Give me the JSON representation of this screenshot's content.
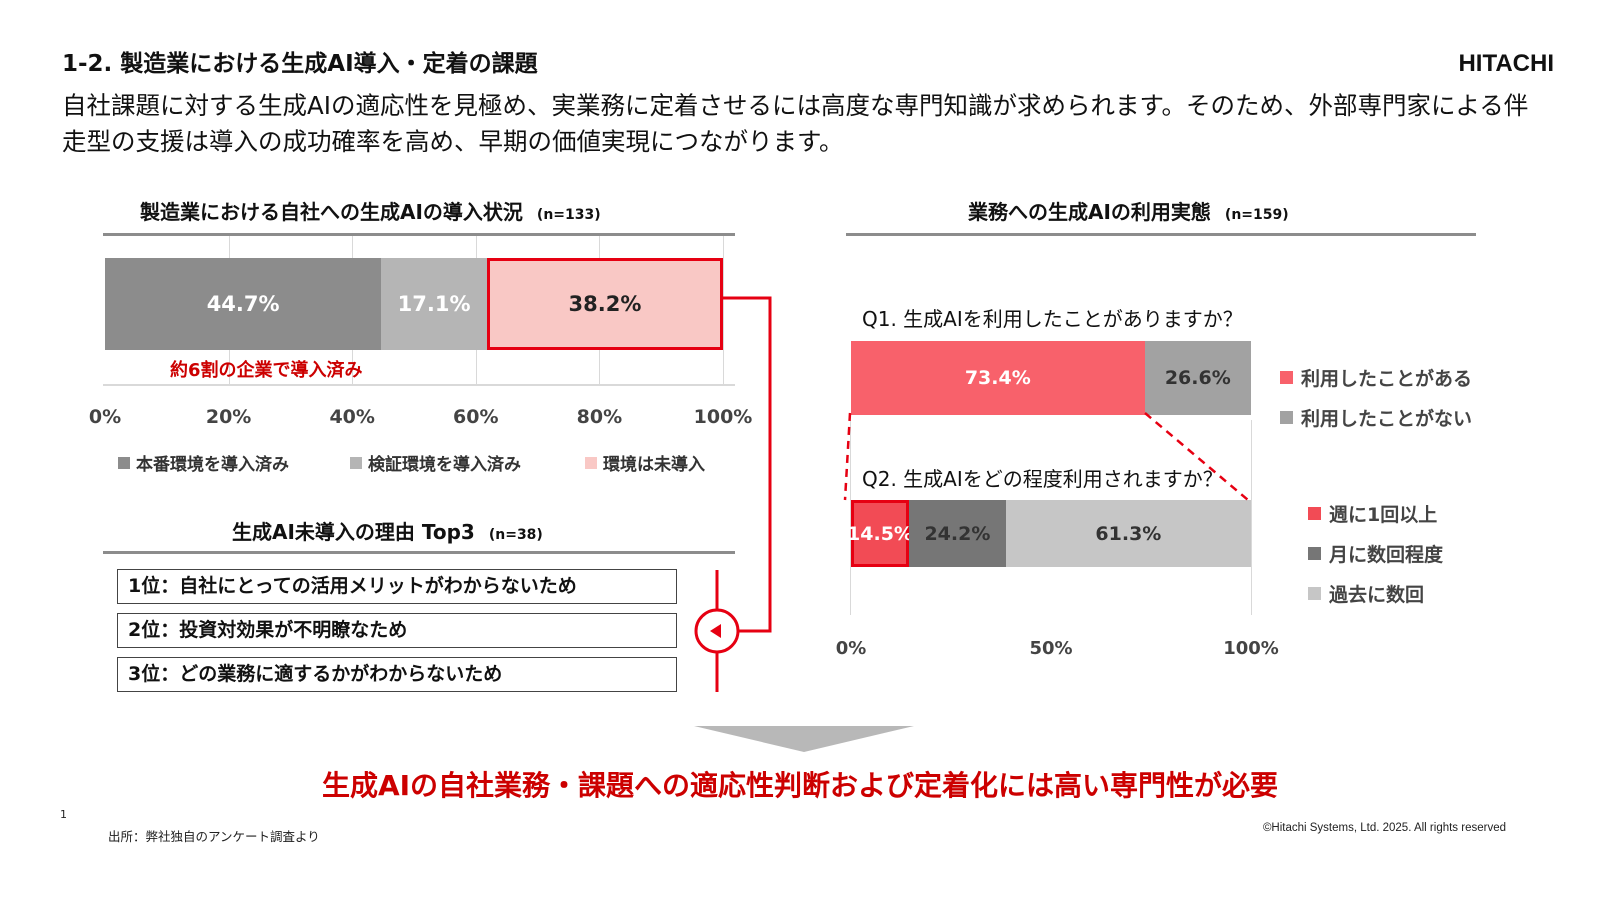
{
  "page": {
    "title": "1-2. 製造業における生成AI導入・定着の課題",
    "logo": "HITACHI",
    "lead": "自社課題に対する生成AIの適応性を見極め、実業務に定着させるには高度な専門知識が求められます。そのため、外部専門家による伴走型の支援は導入の成功確率を高め、早期の価値実現につながります。",
    "conclusion": "生成AIの自社業務・課題への適応性判断および定着化には高い専門性が必要",
    "page_number": "1",
    "source": "出所：弊社独自のアンケート調査より",
    "copyright": "©Hitachi Systems, Ltd. 2025. All rights reserved"
  },
  "left_chart": {
    "title": "製造業における自社への生成AIの導入状況",
    "n": "(n=133)",
    "callout": "約6割の企業で導入済み",
    "ticks": [
      "0%",
      "20%",
      "40%",
      "60%",
      "80%",
      "100%"
    ]
  },
  "reasons": {
    "title": "生成AI未導入の理由 Top3",
    "n": "(n=38)",
    "items": [
      "1位：自社にとっての活用メリットがわからないため",
      "2位：投資対効果が不明瞭なため",
      "3位：どの業務に適するかがわからないため"
    ]
  },
  "right_chart": {
    "title": "業務への生成AIの利用実態",
    "n": "(n=159)",
    "q1": "Q1. 生成AIを利用したことがありますか？",
    "q2": "Q2. 生成AIをどの程度利用されますか？",
    "ticks": [
      "0%",
      "50%",
      "100%"
    ]
  },
  "colors": {
    "dark_gray": "#8c8c8c",
    "light_gray": "#b5b5b5",
    "pink": "#f9c8c5",
    "red": "#e60012",
    "bright_red": "#f24b55",
    "q1_red": "#f8616b",
    "mid_gray": "#a2a2a2",
    "q2_dark": "#767676",
    "q2_light": "#c6c6c6",
    "conclusion": "#cc0000"
  },
  "chart_data": [
    {
      "type": "bar",
      "orientation": "horizontal-stacked",
      "title": "製造業における自社への生成AIの導入状況",
      "series": [
        {
          "name": "本番環境を導入済み",
          "value": 44.7,
          "label": "44.7%"
        },
        {
          "name": "検証環境を導入済み",
          "value": 17.1,
          "label": "17.1%"
        },
        {
          "name": "環境は未導入",
          "value": 38.2,
          "label": "38.2%"
        }
      ],
      "xlim": [
        0,
        100
      ],
      "legend": "bottom"
    },
    {
      "type": "bar",
      "orientation": "horizontal-stacked",
      "title": "Q1. 生成AIを利用したことがありますか？",
      "series": [
        {
          "name": "利用したことがある",
          "value": 73.4,
          "label": "73.4%"
        },
        {
          "name": "利用したことがない",
          "value": 26.6,
          "label": "26.6%"
        }
      ],
      "xlim": [
        0,
        100
      ],
      "legend": "right"
    },
    {
      "type": "bar",
      "orientation": "horizontal-stacked",
      "title": "Q2. 生成AIをどの程度利用されますか？",
      "series": [
        {
          "name": "週に1回以上",
          "value": 14.5,
          "label": "14.5%"
        },
        {
          "name": "月に数回程度",
          "value": 24.2,
          "label": "24.2%"
        },
        {
          "name": "過去に数回",
          "value": 61.3,
          "label": "61.3%"
        }
      ],
      "xlim": [
        0,
        100
      ],
      "legend": "right"
    }
  ]
}
